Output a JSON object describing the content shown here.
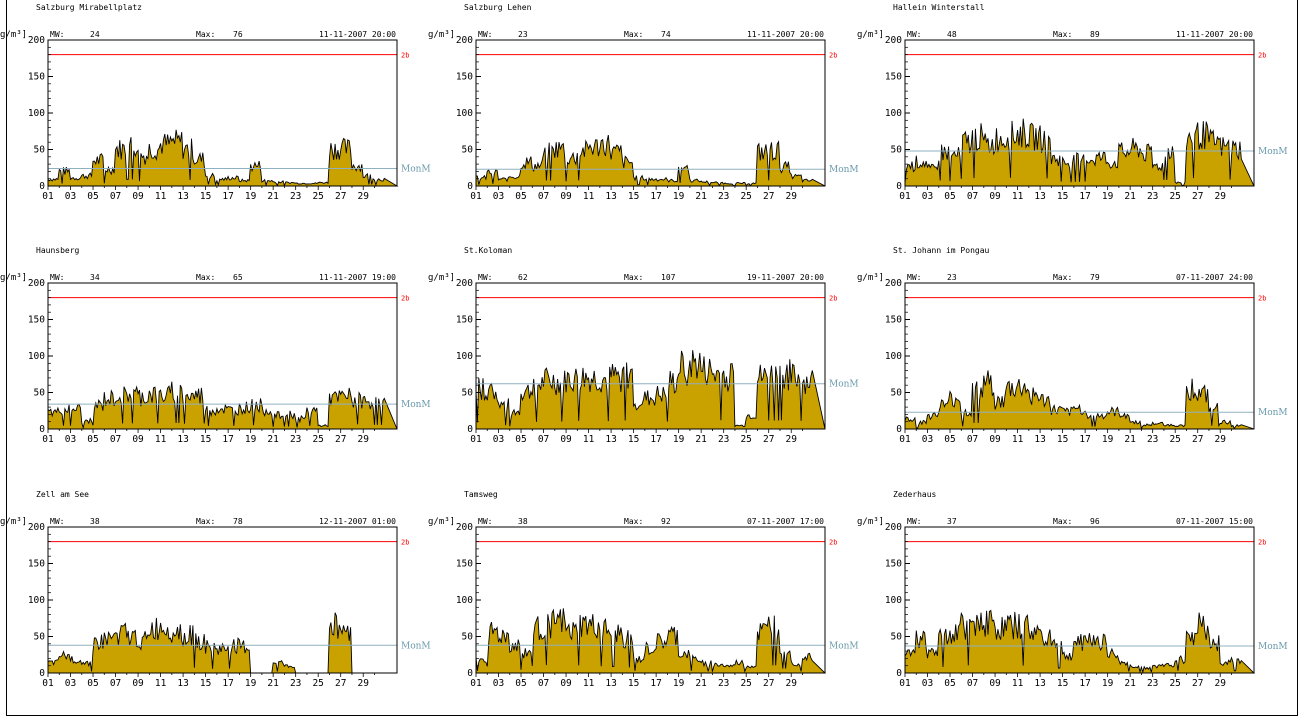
{
  "unit_label": "g/m³]",
  "limit_label": "2b",
  "mean_line_label": "MonM",
  "mw_label": "MW:",
  "max_label": "Max:",
  "colors": {
    "fill": "#c9a200",
    "outline": "#000000",
    "limit": "#ff0000",
    "mean": "#8fb0c0"
  },
  "chart_data": [
    {
      "type": "area",
      "title": "Salzburg Mirabellplatz",
      "mw": "24",
      "max": "76",
      "max_time": "11-11-2007 20:00",
      "ylim": [
        0,
        200
      ],
      "yticks": [
        "0",
        "50",
        "100",
        "150",
        "200"
      ],
      "xticks": [
        "01",
        "03",
        "05",
        "07",
        "09",
        "11",
        "13",
        "15",
        "17",
        "19",
        "21",
        "23",
        "25",
        "27",
        "29"
      ],
      "limit": 180,
      "mean": 24,
      "days": [
        1,
        2,
        3,
        4,
        5,
        6,
        7,
        8,
        9,
        10,
        11,
        12,
        13,
        14,
        15,
        16,
        17,
        18,
        19,
        20,
        21,
        22,
        23,
        24,
        25,
        26,
        27,
        28,
        29,
        30
      ],
      "values": [
        10,
        22,
        12,
        15,
        38,
        25,
        55,
        60,
        45,
        55,
        62,
        65,
        55,
        40,
        15,
        10,
        12,
        8,
        30,
        8,
        6,
        5,
        4,
        4,
        5,
        55,
        55,
        30,
        15,
        10
      ]
    },
    {
      "type": "area",
      "title": "Salzburg Lehen",
      "mw": "23",
      "max": "74",
      "max_time": "11-11-2007 20:00",
      "ylim": [
        0,
        200
      ],
      "yticks": [
        "0",
        "50",
        "100",
        "150",
        "200"
      ],
      "xticks": [
        "01",
        "03",
        "05",
        "07",
        "09",
        "11",
        "13",
        "15",
        "17",
        "19",
        "21",
        "23",
        "25",
        "27",
        "29"
      ],
      "limit": 180,
      "mean": 23,
      "days": [
        1,
        2,
        3,
        4,
        5,
        6,
        7,
        8,
        9,
        10,
        11,
        12,
        13,
        14,
        15,
        16,
        17,
        18,
        19,
        20,
        21,
        22,
        23,
        24,
        25,
        26,
        27,
        28,
        29,
        30
      ],
      "values": [
        12,
        20,
        10,
        14,
        35,
        30,
        50,
        55,
        42,
        52,
        58,
        62,
        50,
        35,
        12,
        10,
        10,
        8,
        28,
        8,
        6,
        5,
        4,
        4,
        4,
        50,
        52,
        28,
        14,
        8
      ]
    },
    {
      "type": "area",
      "title": "Hallein Winterstall",
      "mw": "48",
      "max": "89",
      "max_time": "11-11-2007 20:00",
      "ylim": [
        0,
        200
      ],
      "yticks": [
        "0",
        "50",
        "100",
        "150",
        "200"
      ],
      "xticks": [
        "01",
        "03",
        "05",
        "07",
        "09",
        "11",
        "13",
        "15",
        "17",
        "19",
        "21",
        "23",
        "25",
        "27",
        "29"
      ],
      "limit": 180,
      "mean": 48,
      "days": [
        1,
        2,
        3,
        4,
        5,
        6,
        7,
        8,
        9,
        10,
        11,
        12,
        13,
        14,
        15,
        16,
        17,
        18,
        19,
        20,
        21,
        22,
        23,
        24,
        25,
        26,
        27,
        28,
        29,
        30
      ],
      "values": [
        30,
        35,
        25,
        50,
        45,
        65,
        72,
        62,
        70,
        75,
        78,
        72,
        70,
        40,
        35,
        38,
        40,
        42,
        35,
        50,
        55,
        48,
        30,
        55,
        5,
        72,
        75,
        65,
        58,
        55
      ]
    },
    {
      "type": "area",
      "title": "Haunsberg",
      "mw": "34",
      "max": "65",
      "max_time": "11-11-2007 19:00",
      "ylim": [
        0,
        200
      ],
      "yticks": [
        "0",
        "50",
        "100",
        "150",
        "200"
      ],
      "xticks": [
        "01",
        "03",
        "05",
        "07",
        "09",
        "11",
        "13",
        "15",
        "17",
        "19",
        "21",
        "23",
        "25",
        "27",
        "29"
      ],
      "limit": 180,
      "mean": 34,
      "days": [
        1,
        2,
        3,
        4,
        5,
        6,
        7,
        8,
        9,
        10,
        11,
        12,
        13,
        14,
        15,
        16,
        17,
        18,
        19,
        20,
        21,
        22,
        23,
        24,
        25,
        26,
        27,
        28,
        29,
        30
      ],
      "values": [
        25,
        30,
        30,
        12,
        35,
        45,
        50,
        52,
        48,
        52,
        50,
        55,
        48,
        50,
        28,
        30,
        28,
        32,
        35,
        28,
        20,
        22,
        15,
        28,
        5,
        45,
        48,
        42,
        40,
        38
      ]
    },
    {
      "type": "area",
      "title": "St.Koloman",
      "mw": "62",
      "max": "107",
      "max_time": "19-11-2007 20:00",
      "ylim": [
        0,
        200
      ],
      "yticks": [
        "0",
        "50",
        "100",
        "150",
        "200"
      ],
      "xticks": [
        "01",
        "03",
        "05",
        "07",
        "09",
        "11",
        "13",
        "15",
        "17",
        "19",
        "21",
        "23",
        "25",
        "27",
        "29"
      ],
      "limit": 180,
      "mean": 62,
      "days": [
        1,
        2,
        3,
        4,
        5,
        6,
        7,
        8,
        9,
        10,
        11,
        12,
        13,
        14,
        15,
        16,
        17,
        18,
        19,
        20,
        21,
        22,
        23,
        24,
        25,
        26,
        27,
        28,
        29,
        30
      ],
      "values": [
        60,
        55,
        35,
        25,
        55,
        65,
        70,
        68,
        72,
        75,
        74,
        72,
        76,
        78,
        40,
        45,
        50,
        68,
        90,
        95,
        85,
        80,
        78,
        5,
        20,
        75,
        78,
        80,
        75,
        70
      ]
    },
    {
      "type": "area",
      "title": "St. Johann im Pongau",
      "mw": "23",
      "max": "79",
      "max_time": "07-11-2007 24:00",
      "ylim": [
        0,
        200
      ],
      "yticks": [
        "0",
        "50",
        "100",
        "150",
        "200"
      ],
      "xticks": [
        "01",
        "03",
        "05",
        "07",
        "09",
        "11",
        "13",
        "15",
        "17",
        "19",
        "21",
        "23",
        "25",
        "27",
        "29"
      ],
      "limit": 180,
      "mean": 23,
      "days": [
        1,
        2,
        3,
        4,
        5,
        6,
        7,
        8,
        9,
        10,
        11,
        12,
        13,
        14,
        15,
        16,
        17,
        18,
        19,
        20,
        21,
        22,
        23,
        24,
        25,
        26,
        27,
        28,
        29,
        30
      ],
      "values": [
        15,
        10,
        20,
        35,
        45,
        25,
        55,
        68,
        40,
        60,
        62,
        50,
        42,
        28,
        25,
        30,
        22,
        20,
        25,
        22,
        10,
        6,
        8,
        6,
        5,
        60,
        50,
        30,
        10,
        5
      ]
    },
    {
      "type": "area",
      "title": "Zell am See",
      "mw": "38",
      "max": "78",
      "max_time": "12-11-2007 01:00",
      "ylim": [
        0,
        200
      ],
      "yticks": [
        "0",
        "50",
        "100",
        "150",
        "200"
      ],
      "xticks": [
        "01",
        "03",
        "05",
        "07",
        "09",
        "11",
        "13",
        "15",
        "17",
        "19",
        "21",
        "23",
        "25",
        "27",
        "29"
      ],
      "limit": 180,
      "mean": 38,
      "days": [
        1,
        2,
        3,
        4,
        5,
        6,
        7,
        8,
        9,
        10,
        11,
        12,
        13,
        14,
        15,
        16,
        17,
        18,
        19,
        20,
        21,
        22,
        23,
        24,
        25,
        26,
        27,
        28,
        29,
        30
      ],
      "values": [
        15,
        25,
        20,
        15,
        45,
        50,
        58,
        52,
        48,
        65,
        68,
        62,
        55,
        48,
        38,
        35,
        40,
        38,
        0,
        0,
        15,
        10,
        0,
        0,
        0,
        70,
        65,
        0,
        0,
        0
      ]
    },
    {
      "type": "area",
      "title": "Tamsweg",
      "mw": "38",
      "max": "92",
      "max_time": "07-11-2007 17:00",
      "ylim": [
        0,
        200
      ],
      "yticks": [
        "0",
        "50",
        "100",
        "150",
        "200"
      ],
      "xticks": [
        "01",
        "03",
        "05",
        "07",
        "09",
        "11",
        "13",
        "15",
        "17",
        "19",
        "21",
        "23",
        "25",
        "27",
        "29"
      ],
      "limit": 180,
      "mean": 38,
      "days": [
        1,
        2,
        3,
        4,
        5,
        6,
        7,
        8,
        9,
        10,
        11,
        12,
        13,
        14,
        15,
        16,
        17,
        18,
        19,
        20,
        21,
        22,
        23,
        24,
        25,
        26,
        27,
        28,
        29,
        30
      ],
      "values": [
        20,
        60,
        55,
        40,
        30,
        65,
        72,
        75,
        60,
        70,
        68,
        62,
        58,
        50,
        20,
        35,
        45,
        55,
        28,
        20,
        15,
        12,
        10,
        15,
        10,
        60,
        70,
        40,
        15,
        25
      ]
    },
    {
      "type": "area",
      "title": "Zederhaus",
      "mw": "37",
      "max": "96",
      "max_time": "07-11-2007 15:00",
      "ylim": [
        0,
        200
      ],
      "yticks": [
        "0",
        "50",
        "100",
        "150",
        "200"
      ],
      "xticks": [
        "01",
        "03",
        "05",
        "07",
        "09",
        "11",
        "13",
        "15",
        "17",
        "19",
        "21",
        "23",
        "25",
        "27",
        "29"
      ],
      "limit": 180,
      "mean": 37,
      "days": [
        1,
        2,
        3,
        4,
        5,
        6,
        7,
        8,
        9,
        10,
        11,
        12,
        13,
        14,
        15,
        16,
        17,
        18,
        19,
        20,
        21,
        22,
        23,
        24,
        25,
        26,
        27,
        28,
        29,
        30
      ],
      "values": [
        35,
        50,
        30,
        55,
        60,
        70,
        78,
        75,
        65,
        70,
        68,
        60,
        55,
        45,
        25,
        45,
        50,
        48,
        28,
        15,
        10,
        8,
        10,
        12,
        20,
        58,
        70,
        45,
        15,
        20
      ]
    }
  ]
}
